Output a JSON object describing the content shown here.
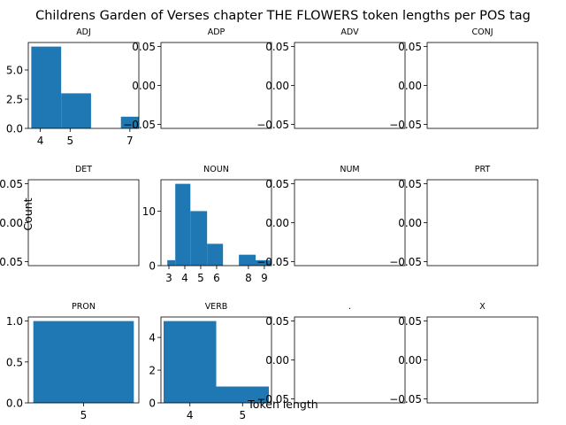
{
  "chart_data": {
    "type": "bar",
    "title": "Childrens Garden of Verses chapter THE FLOWERS token lengths per POS tag",
    "xlabel": "Token length",
    "ylabel": "Count",
    "bar_color": "#1f77b4",
    "grid": false,
    "panels": [
      {
        "tag": "ADJ",
        "xlim": [
          3.6,
          7.3
        ],
        "ylim": [
          0,
          7.35
        ],
        "xticks": [
          4,
          5,
          7
        ],
        "yticks": [
          0.0,
          2.5,
          5.0
        ],
        "ytick_labels": [
          "0.0",
          "2.5",
          "5.0"
        ],
        "bars": [
          {
            "x0": 3.7,
            "x1": 4.7,
            "count": 7
          },
          {
            "x0": 4.7,
            "x1": 5.7,
            "count": 3
          },
          {
            "x0": 6.7,
            "x1": 7.7,
            "count": 1
          }
        ]
      },
      {
        "tag": "ADP",
        "empty": true,
        "ylim": [
          -0.055,
          0.055
        ],
        "yticks": [
          0.05,
          0.0,
          -0.05
        ],
        "ytick_labels": [
          "0.05",
          "0.00",
          "−0.05"
        ],
        "bars": []
      },
      {
        "tag": "ADV",
        "empty": true,
        "ylim": [
          -0.055,
          0.055
        ],
        "yticks": [
          0.05,
          0.0,
          -0.05
        ],
        "ytick_labels": [
          "0.05",
          "0.00",
          "−0.05"
        ],
        "bars": []
      },
      {
        "tag": "CONJ",
        "empty": true,
        "ylim": [
          -0.055,
          0.055
        ],
        "yticks": [
          0.05,
          0.0,
          -0.05
        ],
        "ytick_labels": [
          "0.05",
          "0.00",
          "−0.05"
        ],
        "bars": []
      },
      {
        "tag": "DET",
        "empty": true,
        "ylim": [
          -0.055,
          0.055
        ],
        "yticks": [
          0.05,
          0.0,
          -0.05
        ],
        "ytick_labels": [
          "0.05",
          "0.00",
          "−0.05"
        ],
        "bars": []
      },
      {
        "tag": "NOUN",
        "xlim": [
          2.5,
          9.45
        ],
        "ylim": [
          0,
          15.75
        ],
        "xticks": [
          3,
          4,
          5,
          6,
          8,
          9
        ],
        "yticks": [
          0,
          10
        ],
        "ytick_labels": [
          "0",
          "10"
        ],
        "bars": [
          {
            "x0": 2.9,
            "x1": 3.4,
            "count": 1
          },
          {
            "x0": 3.4,
            "x1": 4.35,
            "count": 15
          },
          {
            "x0": 4.35,
            "x1": 5.4,
            "count": 10
          },
          {
            "x0": 5.4,
            "x1": 6.4,
            "count": 4
          },
          {
            "x0": 7.4,
            "x1": 8.45,
            "count": 2
          },
          {
            "x0": 8.45,
            "x1": 9.4,
            "count": 1
          }
        ]
      },
      {
        "tag": "NUM",
        "empty": true,
        "ylim": [
          -0.055,
          0.055
        ],
        "yticks": [
          0.05,
          0.0,
          -0.05
        ],
        "ytick_labels": [
          "0.05",
          "0.00",
          "−0.05"
        ],
        "bars": []
      },
      {
        "tag": "PRT",
        "empty": true,
        "ylim": [
          -0.055,
          0.055
        ],
        "yticks": [
          0.05,
          0.0,
          -0.05
        ],
        "ytick_labels": [
          "0.05",
          "0.00",
          "−0.05"
        ],
        "bars": []
      },
      {
        "tag": "PRON",
        "xlim": [
          4.45,
          5.55
        ],
        "ylim": [
          0,
          1.05
        ],
        "xticks": [
          5
        ],
        "yticks": [
          0.0,
          0.5,
          1.0
        ],
        "ytick_labels": [
          "0.0",
          "0.5",
          "1.0"
        ],
        "bars": [
          {
            "x0": 4.5,
            "x1": 5.5,
            "count": 1
          }
        ]
      },
      {
        "tag": "VERB",
        "xlim": [
          3.45,
          5.55
        ],
        "ylim": [
          0,
          5.25
        ],
        "xticks": [
          4,
          5
        ],
        "yticks": [
          0,
          2,
          4
        ],
        "ytick_labels": [
          "0",
          "2",
          "4"
        ],
        "bars": [
          {
            "x0": 3.5,
            "x1": 4.5,
            "count": 5
          },
          {
            "x0": 4.5,
            "x1": 5.5,
            "count": 1
          }
        ]
      },
      {
        "tag": ".",
        "empty": true,
        "ylim": [
          -0.055,
          0.055
        ],
        "yticks": [
          0.05,
          0.0,
          -0.05
        ],
        "ytick_labels": [
          "0.05",
          "0.00",
          "−0.05"
        ],
        "bars": []
      },
      {
        "tag": "X",
        "empty": true,
        "ylim": [
          -0.055,
          0.055
        ],
        "yticks": [
          0.05,
          0.0,
          -0.05
        ],
        "ytick_labels": [
          "0.05",
          "0.00",
          "−0.05"
        ],
        "bars": []
      }
    ]
  }
}
